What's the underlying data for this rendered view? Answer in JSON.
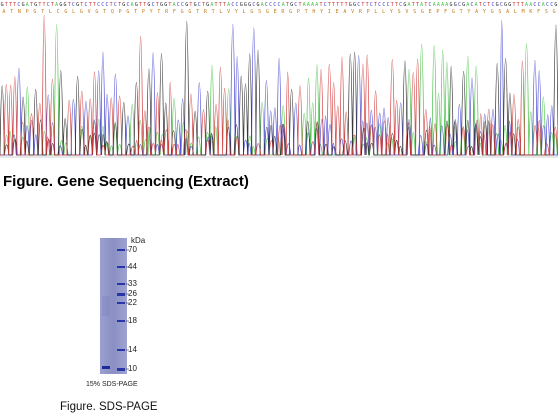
{
  "sequencing": {
    "caption": "Figure. Gene Sequencing (Extract)",
    "nucleotides": "GTTTCGATGTTCTAGGTCGTCTTCCCTCTGCAGTTGCTGGTACCGTGCTGATTTACCGGGCGACCCCATGCTAAAATCTTTTTGGCTTCTCCCTTCGATTATCAAAAGGCGACATCTCGCGGTTTAACCACCG",
    "translation": "ATNPGTLCGLGVGTQPGTPYTRFGGTRTLVYLGSGERGPTHYIEAVRPLLYSVSGEPFGTYAYGSALMKFSG",
    "trace_colors": {
      "A": "#3fbf3f",
      "C": "#3f3fcf",
      "G": "#222222",
      "T": "#d03434"
    }
  },
  "gel": {
    "unit": "kDa",
    "markers": [
      "70",
      "44",
      "33",
      "26",
      "22",
      "18",
      "14",
      "10"
    ],
    "caption": "15% SDS-PAGE",
    "figure_caption": "Figure. SDS-PAGE",
    "band_color": "#2a36a6",
    "lane_color": "#8a8fc4"
  }
}
